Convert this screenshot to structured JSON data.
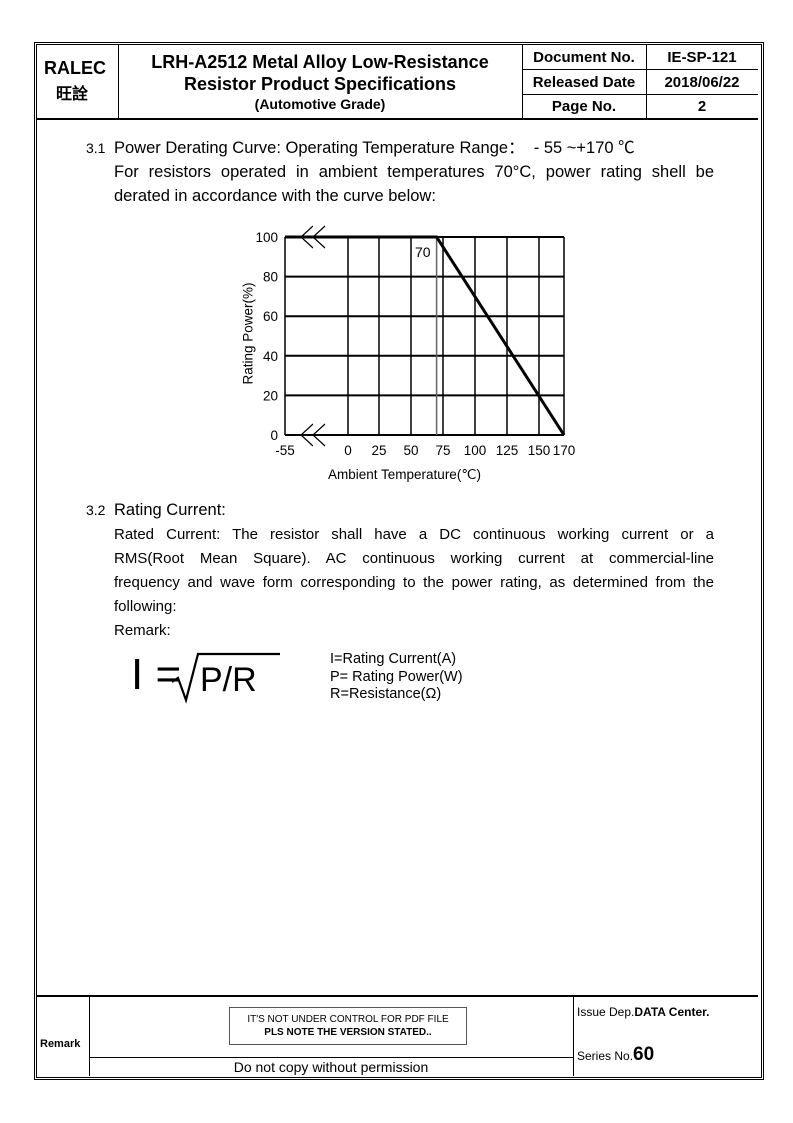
{
  "header": {
    "company": "RALEC",
    "company_cn": "旺詮",
    "title_line1": "LRH-A2512 Metal Alloy Low-Resistance",
    "title_line2": "Resistor Product Specifications",
    "title_line3": "(Automotive Grade)",
    "document_no_label": "Document No.",
    "document_no": "IE-SP-121",
    "released_date_label": "Released Date",
    "released_date": "2018/06/22",
    "page_no_label": "Page No.",
    "page_no": "2"
  },
  "section_3_1": {
    "number": "3.1",
    "title": "Power Derating Curve: Operating Temperature Range：  - 55 ~+170 ℃",
    "text_line1": "For resistors operated in ambient temperatures 70°C, power rating shell be",
    "text_line2": "derated in accordance with the curve below:"
  },
  "chart_data": {
    "type": "line",
    "x": [
      -55,
      70,
      170
    ],
    "y": [
      100,
      100,
      0
    ],
    "xlabel": "Ambient Temperature(℃)",
    "ylabel": "Rating Power(%)",
    "xticks": [
      "-55",
      "0",
      "25",
      "50",
      "75",
      "100",
      "125",
      "150",
      "170"
    ],
    "yticks": [
      "100",
      "80",
      "60",
      "40",
      "20",
      "0"
    ],
    "xlim": [
      -55,
      170
    ],
    "ylim": [
      0,
      100
    ],
    "grid": true,
    "annotation": "70",
    "axis_break": true
  },
  "section_3_2": {
    "number": "3.2",
    "title": "Rating Current:",
    "lines": [
      "Rated Current: The resistor shall have a DC continuous working current or a",
      "RMS(Root Mean Square). AC continuous working current at commercial-line",
      "frequency and wave form corresponding to the power rating, as determined from the",
      "following:"
    ],
    "remark": "Remark:",
    "formula_lhs": "I =",
    "formula_rad": "P/R",
    "legend": [
      "I=Rating Current(A)",
      "P= Rating Power(W)",
      "R=Resistance(Ω)"
    ]
  },
  "footer": {
    "remark_label": "Remark",
    "notice_line1": "IT'S NOT UNDER CONTROL FOR PDF FILE",
    "notice_line2": "PLS NOTE THE VERSION STATED..",
    "copy_notice": "Do not copy without permission",
    "issue_dep_label": "Issue Dep.",
    "issue_dep": "DATA Center.",
    "series_label": "Series No.",
    "series_no": "60"
  }
}
